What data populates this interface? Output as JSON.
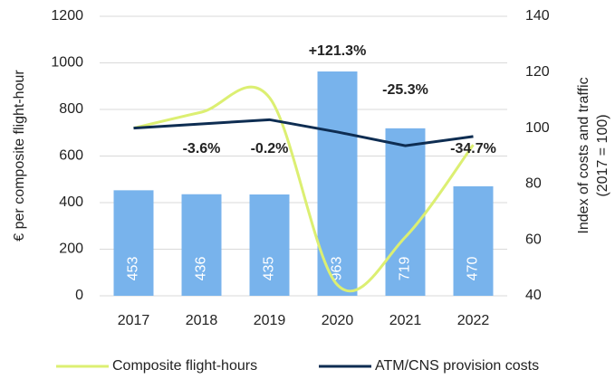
{
  "chart_data": {
    "type": "bar-line",
    "categories": [
      "2017",
      "2018",
      "2019",
      "2020",
      "2021",
      "2022"
    ],
    "series": [
      {
        "name": "€ per composite flight-hour",
        "kind": "bar",
        "color": "#78b3ec",
        "values": [
          453,
          436,
          435,
          963,
          719,
          470
        ]
      },
      {
        "name": "Composite flight-hours",
        "kind": "line",
        "smooth": true,
        "axis": "y2",
        "color": "#dcef72",
        "values": [
          100,
          105.7,
          110.9,
          43.9,
          61,
          94
        ]
      },
      {
        "name": "ATM/CNS provision costs",
        "kind": "line",
        "axis": "y2",
        "color": "#0e2d52",
        "values": [
          100,
          101.5,
          103,
          98.6,
          93.7,
          97
        ]
      }
    ],
    "annotations": [
      null,
      "-3.6%",
      "-0.2%",
      "+121.3%",
      "-25.3%",
      "-34.7%"
    ],
    "ylabel": "€ per composite flight-hour",
    "y2label": [
      "Index of costs and traffic",
      "(2017 = 100)"
    ],
    "ylim": [
      0,
      1200
    ],
    "yticks": [
      0,
      200,
      400,
      600,
      800,
      1000,
      1200
    ],
    "y2lim": [
      40,
      140
    ],
    "y2ticks": [
      40,
      60,
      80,
      100,
      120,
      140
    ],
    "grid": true,
    "legend": "bottom"
  }
}
